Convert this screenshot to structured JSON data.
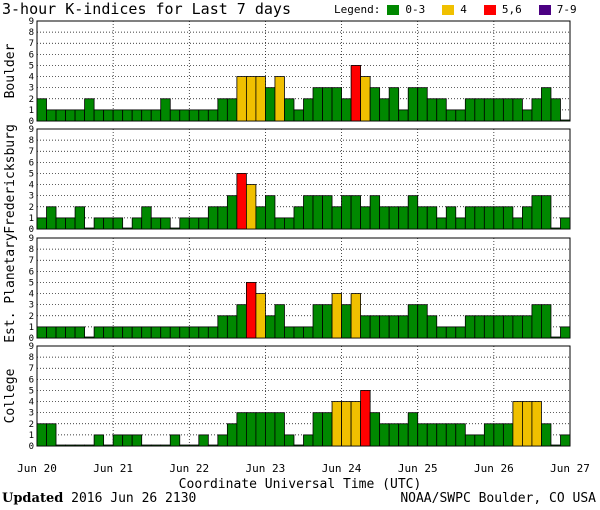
{
  "title": "3-hour K-indices for Last 7 days",
  "legend": {
    "label": "Legend:",
    "items": [
      {
        "label": "0-3",
        "color": "#008800"
      },
      {
        "label": "4",
        "color": "#f0c000"
      },
      {
        "label": "5,6",
        "color": "#ff0000"
      },
      {
        "label": "7-9",
        "color": "#4b0082"
      }
    ]
  },
  "footer": {
    "updated_word": "Updated",
    "updated_value": "2016 Jun 26 2130",
    "source": "NOAA/SWPC Boulder, CO USA"
  },
  "chart_data": [
    {
      "type": "bar",
      "ylabel": "Boulder",
      "ylim": [
        0,
        9
      ],
      "yticks": [
        0,
        1,
        2,
        3,
        4,
        5,
        6,
        7,
        8,
        9
      ],
      "xlabel": "Coordinate Universal Time (UTC)",
      "xtick_labels": [
        "Jun 20",
        "Jun 21",
        "Jun 22",
        "Jun 23",
        "Jun 24",
        "Jun 25",
        "Jun 26",
        "Jun 27"
      ],
      "bars_per_day": 8,
      "values": [
        2,
        1,
        1,
        1,
        1,
        2,
        1,
        1,
        1,
        1,
        1,
        1,
        1,
        2,
        1,
        1,
        1,
        1,
        1,
        2,
        2,
        4,
        4,
        4,
        3,
        4,
        2,
        1,
        2,
        3,
        3,
        3,
        2,
        5,
        4,
        3,
        2,
        3,
        1,
        3,
        3,
        2,
        2,
        1,
        1,
        2,
        2,
        2,
        2,
        2,
        2,
        1,
        2,
        3,
        2,
        0
      ],
      "grid": true,
      "legend_position": "top-right"
    },
    {
      "type": "bar",
      "ylabel": "Fredericksburg",
      "ylim": [
        0,
        9
      ],
      "yticks": [
        0,
        1,
        2,
        3,
        4,
        5,
        6,
        7,
        8,
        9
      ],
      "xtick_labels": [
        "Jun 20",
        "Jun 21",
        "Jun 22",
        "Jun 23",
        "Jun 24",
        "Jun 25",
        "Jun 26",
        "Jun 27"
      ],
      "bars_per_day": 8,
      "values": [
        1,
        2,
        1,
        1,
        2,
        0,
        1,
        1,
        1,
        0,
        1,
        2,
        1,
        1,
        0,
        1,
        1,
        1,
        2,
        2,
        3,
        5,
        4,
        2,
        3,
        1,
        1,
        2,
        3,
        3,
        3,
        2,
        3,
        3,
        2,
        3,
        2,
        2,
        2,
        3,
        2,
        2,
        1,
        2,
        1,
        2,
        2,
        2,
        2,
        2,
        1,
        2,
        3,
        3,
        0,
        1
      ],
      "grid": true
    },
    {
      "type": "bar",
      "ylabel": "Est. Planetary",
      "ylim": [
        0,
        9
      ],
      "yticks": [
        0,
        1,
        2,
        3,
        4,
        5,
        6,
        7,
        8,
        9
      ],
      "xtick_labels": [
        "Jun 20",
        "Jun 21",
        "Jun 22",
        "Jun 23",
        "Jun 24",
        "Jun 25",
        "Jun 26",
        "Jun 27"
      ],
      "bars_per_day": 8,
      "values": [
        1,
        1,
        1,
        1,
        1,
        0,
        1,
        1,
        1,
        1,
        1,
        1,
        1,
        1,
        1,
        1,
        1,
        1,
        1,
        2,
        2,
        3,
        5,
        4,
        2,
        3,
        1,
        1,
        1,
        3,
        3,
        4,
        3,
        4,
        2,
        2,
        2,
        2,
        2,
        3,
        3,
        2,
        1,
        1,
        1,
        2,
        2,
        2,
        2,
        2,
        2,
        2,
        3,
        3,
        0,
        1
      ],
      "grid": true
    },
    {
      "type": "bar",
      "ylabel": "College",
      "ylim": [
        0,
        9
      ],
      "yticks": [
        0,
        1,
        2,
        3,
        4,
        5,
        6,
        7,
        8,
        9
      ],
      "xlabel": "Coordinate Universal Time (UTC)",
      "xtick_labels": [
        "Jun 20",
        "Jun 21",
        "Jun 22",
        "Jun 23",
        "Jun 24",
        "Jun 25",
        "Jun 26",
        "Jun 27"
      ],
      "bars_per_day": 8,
      "values": [
        2,
        2,
        0,
        0,
        0,
        0,
        1,
        0,
        1,
        1,
        1,
        0,
        0,
        0,
        1,
        0,
        0,
        1,
        0,
        1,
        2,
        3,
        3,
        3,
        3,
        3,
        1,
        0,
        1,
        3,
        3,
        4,
        4,
        4,
        5,
        3,
        2,
        2,
        2,
        3,
        2,
        2,
        2,
        2,
        2,
        1,
        1,
        2,
        2,
        2,
        4,
        4,
        4,
        2,
        0,
        1
      ],
      "grid": true
    }
  ]
}
